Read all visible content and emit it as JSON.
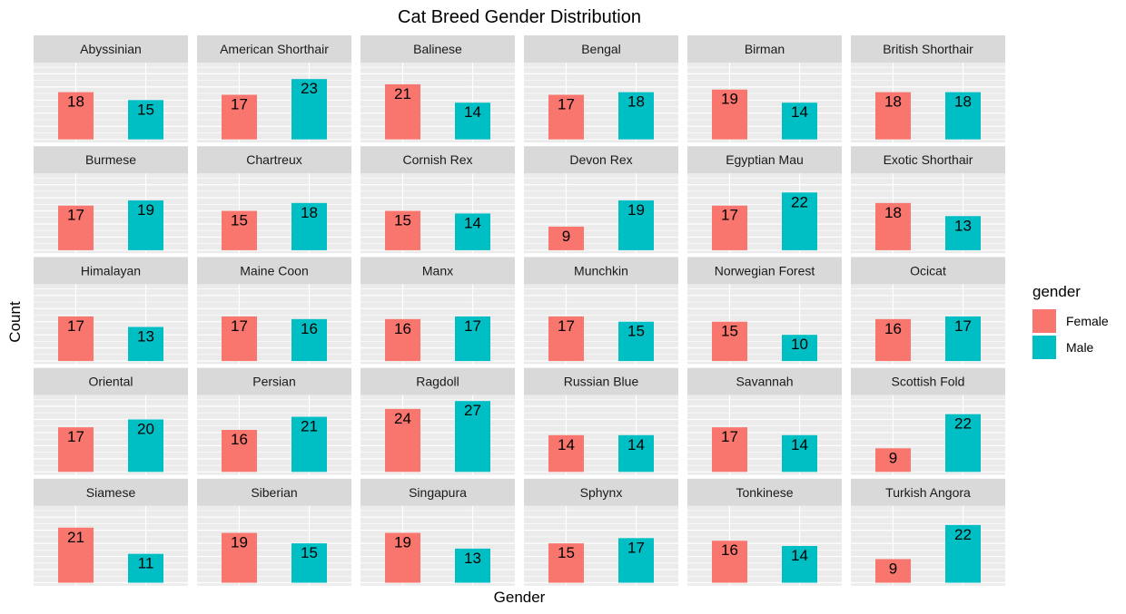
{
  "chart_data": {
    "type": "bar",
    "title": "Cat Breed Gender Distribution",
    "xlabel": "Gender",
    "ylabel": "Count",
    "ylim": [
      0,
      27
    ],
    "facet": "breed",
    "facet_columns": 6,
    "legend": {
      "title": "gender",
      "placement": "right",
      "entries": [
        {
          "label": "Female",
          "color": "#F8766D"
        },
        {
          "label": "Male",
          "color": "#00BFC4"
        }
      ]
    },
    "categories": [
      "Female",
      "Male"
    ],
    "colors": {
      "Female": "#F8766D",
      "Male": "#00BFC4",
      "panel": "#EBEBEB",
      "strip": "#D9D9D9",
      "grid": "#FFFFFF"
    },
    "panels": [
      {
        "breed": "Abyssinian",
        "female": 18,
        "male": 15
      },
      {
        "breed": "American Shorthair",
        "female": 17,
        "male": 23
      },
      {
        "breed": "Balinese",
        "female": 21,
        "male": 14
      },
      {
        "breed": "Bengal",
        "female": 17,
        "male": 18
      },
      {
        "breed": "Birman",
        "female": 19,
        "male": 14
      },
      {
        "breed": "British Shorthair",
        "female": 18,
        "male": 18
      },
      {
        "breed": "Burmese",
        "female": 17,
        "male": 19
      },
      {
        "breed": "Chartreux",
        "female": 15,
        "male": 18
      },
      {
        "breed": "Cornish Rex",
        "female": 15,
        "male": 14
      },
      {
        "breed": "Devon Rex",
        "female": 9,
        "male": 19
      },
      {
        "breed": "Egyptian Mau",
        "female": 17,
        "male": 22
      },
      {
        "breed": "Exotic Shorthair",
        "female": 18,
        "male": 13
      },
      {
        "breed": "Himalayan",
        "female": 17,
        "male": 13
      },
      {
        "breed": "Maine Coon",
        "female": 17,
        "male": 16
      },
      {
        "breed": "Manx",
        "female": 16,
        "male": 17
      },
      {
        "breed": "Munchkin",
        "female": 17,
        "male": 15
      },
      {
        "breed": "Norwegian Forest",
        "female": 15,
        "male": 10
      },
      {
        "breed": "Ocicat",
        "female": 16,
        "male": 17
      },
      {
        "breed": "Oriental",
        "female": 17,
        "male": 20
      },
      {
        "breed": "Persian",
        "female": 16,
        "male": 21
      },
      {
        "breed": "Ragdoll",
        "female": 24,
        "male": 27
      },
      {
        "breed": "Russian Blue",
        "female": 14,
        "male": 14
      },
      {
        "breed": "Savannah",
        "female": 17,
        "male": 14
      },
      {
        "breed": "Scottish Fold",
        "female": 9,
        "male": 22
      },
      {
        "breed": "Siamese",
        "female": 21,
        "male": 11
      },
      {
        "breed": "Siberian",
        "female": 19,
        "male": 15
      },
      {
        "breed": "Singapura",
        "female": 19,
        "male": 13
      },
      {
        "breed": "Sphynx",
        "female": 15,
        "male": 17
      },
      {
        "breed": "Tonkinese",
        "female": 16,
        "male": 14
      },
      {
        "breed": "Turkish Angora",
        "female": 9,
        "male": 22
      }
    ]
  }
}
